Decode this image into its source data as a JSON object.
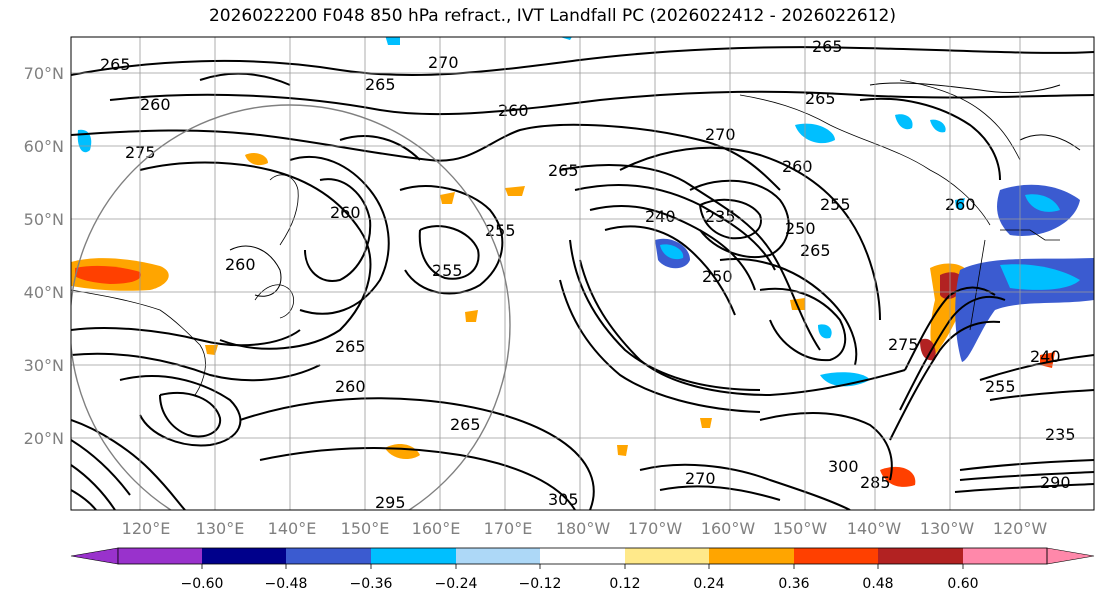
{
  "title": "2026022200 F048 850 hPa refract., IVT Landfall PC (2026022412 - 2026022612)",
  "lat_labels": [
    "70°N",
    "60°N",
    "50°N",
    "40°N",
    "30°N",
    "20°N"
  ],
  "lon_labels": [
    "120°E",
    "130°E",
    "140°E",
    "150°E",
    "160°E",
    "170°E",
    "180°W",
    "170°W",
    "160°W",
    "150°W",
    "140°W",
    "130°W",
    "120°W"
  ],
  "contour_labels": [
    "265",
    "270",
    "265",
    "260",
    "265",
    "260",
    "270",
    "275",
    "265",
    "260",
    "235",
    "240",
    "250",
    "255",
    "250",
    "260",
    "255",
    "265",
    "255",
    "260",
    "265",
    "260",
    "275",
    "265",
    "255",
    "260",
    "235",
    "240",
    "290",
    "265",
    "305",
    "295",
    "300",
    "285",
    "270"
  ],
  "colorbar": {
    "ticks": [
      "−0.60",
      "−0.48",
      "−0.36",
      "−0.24",
      "−0.12",
      "0.12",
      "0.24",
      "0.36",
      "0.48",
      "0.60"
    ],
    "colors": [
      "#9932cc",
      "#00008b",
      "#3b5bd0",
      "#00bfff",
      "#add8f7",
      "#ffffff",
      "#ffe98a",
      "#ffa500",
      "#ff4000",
      "#b22222",
      "#ff88aa"
    ]
  }
}
